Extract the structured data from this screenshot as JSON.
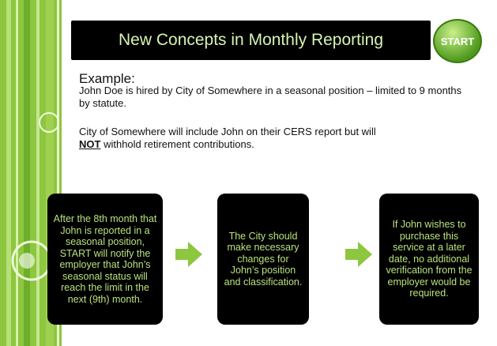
{
  "title": "New Concepts in Monthly Reporting",
  "logo": "START",
  "example": {
    "heading": "Example:",
    "paragraph1": "John Doe is hired by City of Somewhere in a seasonal position – limited to 9 months by statute.",
    "paragraph2": {
      "before": "City of Somewhere will include John on their CERS report but will",
      "emphasis": "NOT",
      "after": "withhold retirement contributions."
    }
  },
  "steps": [
    "After the 8th month that John is reported in a seasonal position, START will notify the employer that John’s seasonal status will reach the limit in the next (9th) month.",
    "The City should make necessary changes for John’s position and classification.",
    "If John wishes to purchase this service at a later date, no additional verification from the employer would be required."
  ]
}
